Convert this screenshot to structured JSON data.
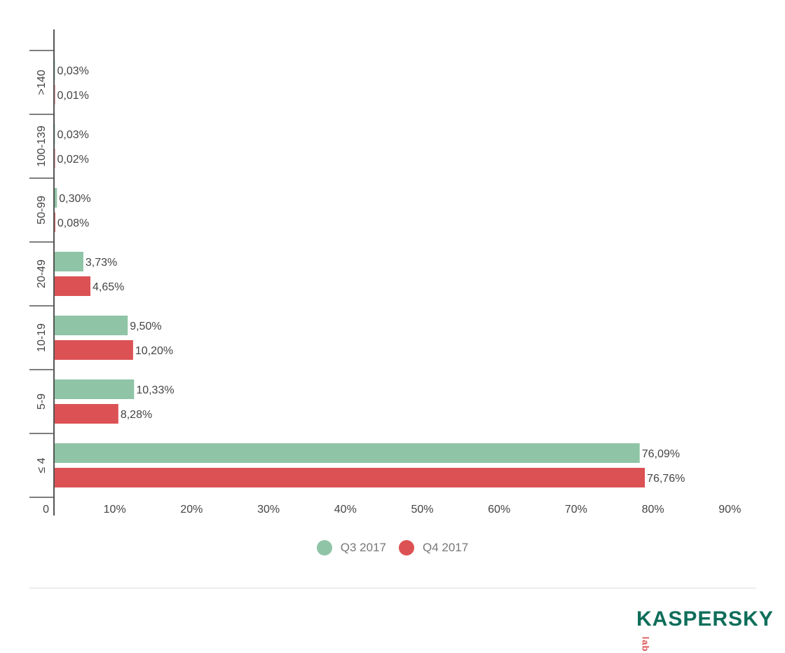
{
  "chart_data": {
    "type": "bar",
    "orientation": "horizontal",
    "categories": [
      ">140",
      "100-139",
      "50-99",
      "20-49",
      "10-19",
      "5-9",
      "≤ 4"
    ],
    "series": [
      {
        "name": "Q3 2017",
        "color": "#8fc4a7",
        "values": [
          0.03,
          0.03,
          0.3,
          3.73,
          9.5,
          10.33,
          76.09
        ],
        "labels": [
          "0,03%",
          "0,03%",
          "0,30%",
          "3,73%",
          "9,50%",
          "10,33%",
          "76,09%"
        ]
      },
      {
        "name": "Q4 2017",
        "color": "#dc5254",
        "values": [
          0.01,
          0.02,
          0.08,
          4.65,
          10.2,
          8.28,
          76.76
        ],
        "labels": [
          "0,01%",
          "0,02%",
          "0,08%",
          "4,65%",
          "10,20%",
          "8,28%",
          "76,76%"
        ]
      }
    ],
    "xticks": [
      "0",
      "10%",
      "20%",
      "30%",
      "40%",
      "50%",
      "60%",
      "70%",
      "80%",
      "90%"
    ],
    "xlim": [
      0,
      90
    ],
    "grid": false,
    "legend_position": "bottom"
  },
  "logo": {
    "text": "KASPERSKY",
    "sub": "lab"
  }
}
